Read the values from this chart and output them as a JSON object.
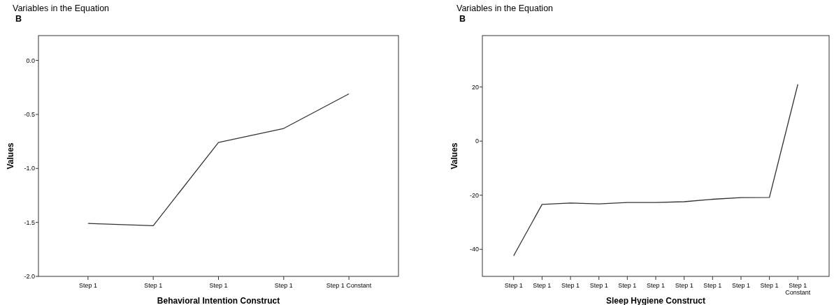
{
  "chart_data": [
    {
      "type": "line",
      "title": "Variables in the Equation",
      "subtitle": "B",
      "xlabel": "Behavioral Intention Construct",
      "ylabel": "Values",
      "categories": [
        "Step 1",
        "Step 1",
        "Step 1",
        "Step 1",
        "Step 1 Constant"
      ],
      "series": [
        {
          "color": "#333333",
          "values": [
            -1.51,
            -1.53,
            -0.76,
            -0.63,
            -0.31
          ]
        }
      ],
      "ylim": [
        -2.0,
        0.23
      ],
      "yticks": [
        {
          "value": 0,
          "label": "0.0"
        },
        -0.5,
        {
          "value": -1,
          "label": "-1.0"
        },
        -1.5,
        {
          "value": -2,
          "label": "-2.0"
        }
      ],
      "grid": false
    },
    {
      "type": "line",
      "title": "Variables in the Equation",
      "subtitle": "B",
      "xlabel": "Sleep Hygiene Construct",
      "ylabel": "Values",
      "categories": [
        "Step 1",
        "Step 1",
        "Step 1",
        "Step 1",
        "Step 1",
        "Step 1",
        "Step 1",
        "Step 1",
        "Step 1",
        "Step 1",
        "Step 1 Constant"
      ],
      "series": [
        {
          "color": "#333333",
          "values": [
            -42.4,
            -23.4,
            -22.9,
            -23.2,
            -22.7,
            -22.7,
            -22.4,
            -21.5,
            -20.9,
            -20.8,
            21.0
          ]
        }
      ],
      "ylim": [
        -50,
        39
      ],
      "yticks": [
        20,
        0,
        -20,
        -40
      ],
      "grid": false
    }
  ]
}
